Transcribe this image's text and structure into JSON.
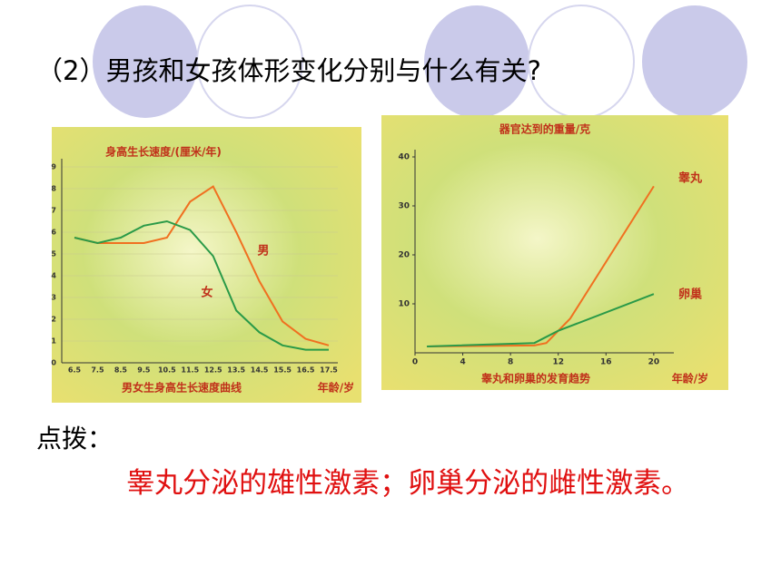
{
  "question": "（2）男孩和女孩体形变化分别与什么有关?",
  "hint_label": "点拨：",
  "hint_text": "睾丸分泌的雄性激素；卵巢分泌的雌性激素。",
  "chart_data": [
    {
      "type": "line",
      "title": "身高生长速度/(厘米/年)",
      "x_label": "年龄/岁",
      "caption": "男女生身高生长速度曲线",
      "categories": [
        "6.5",
        "7.5",
        "8.5",
        "9.5",
        "10.5",
        "11.5",
        "12.5",
        "13.5",
        "14.5",
        "15.5",
        "16.5",
        "17.5"
      ],
      "ylim": [
        0,
        9
      ],
      "yticks": [
        0,
        1,
        2,
        3,
        4,
        5,
        6,
        7,
        8,
        9
      ],
      "grid": true,
      "series": [
        {
          "name": "男",
          "color": "#f07020",
          "values": [
            5.75,
            5.5,
            5.5,
            5.5,
            5.75,
            7.4,
            8.1,
            6.0,
            3.75,
            1.9,
            1.1,
            0.8
          ]
        },
        {
          "name": "女",
          "color": "#2a9a48",
          "values": [
            5.75,
            5.5,
            5.75,
            6.3,
            6.5,
            6.1,
            4.9,
            2.4,
            1.4,
            0.8,
            0.6,
            0.6
          ]
        }
      ]
    },
    {
      "type": "line",
      "title": "器官达到的重量/克",
      "x_label": "年龄/岁",
      "caption": "睾丸和卵巢的发育趋势",
      "xlim": [
        0,
        21
      ],
      "xticks": [
        0,
        4,
        8,
        12,
        16,
        20
      ],
      "ylim": [
        0,
        40
      ],
      "yticks": [
        10,
        20,
        30,
        40
      ],
      "series": [
        {
          "name": "睾丸",
          "color": "#f07020",
          "x": [
            1,
            10,
            11,
            13,
            20
          ],
          "values": [
            1.3,
            1.5,
            2,
            7,
            34
          ]
        },
        {
          "name": "卵巢",
          "color": "#2a9a48",
          "x": [
            1,
            10,
            12,
            20
          ],
          "values": [
            1.3,
            2,
            4.5,
            12
          ]
        }
      ]
    }
  ]
}
